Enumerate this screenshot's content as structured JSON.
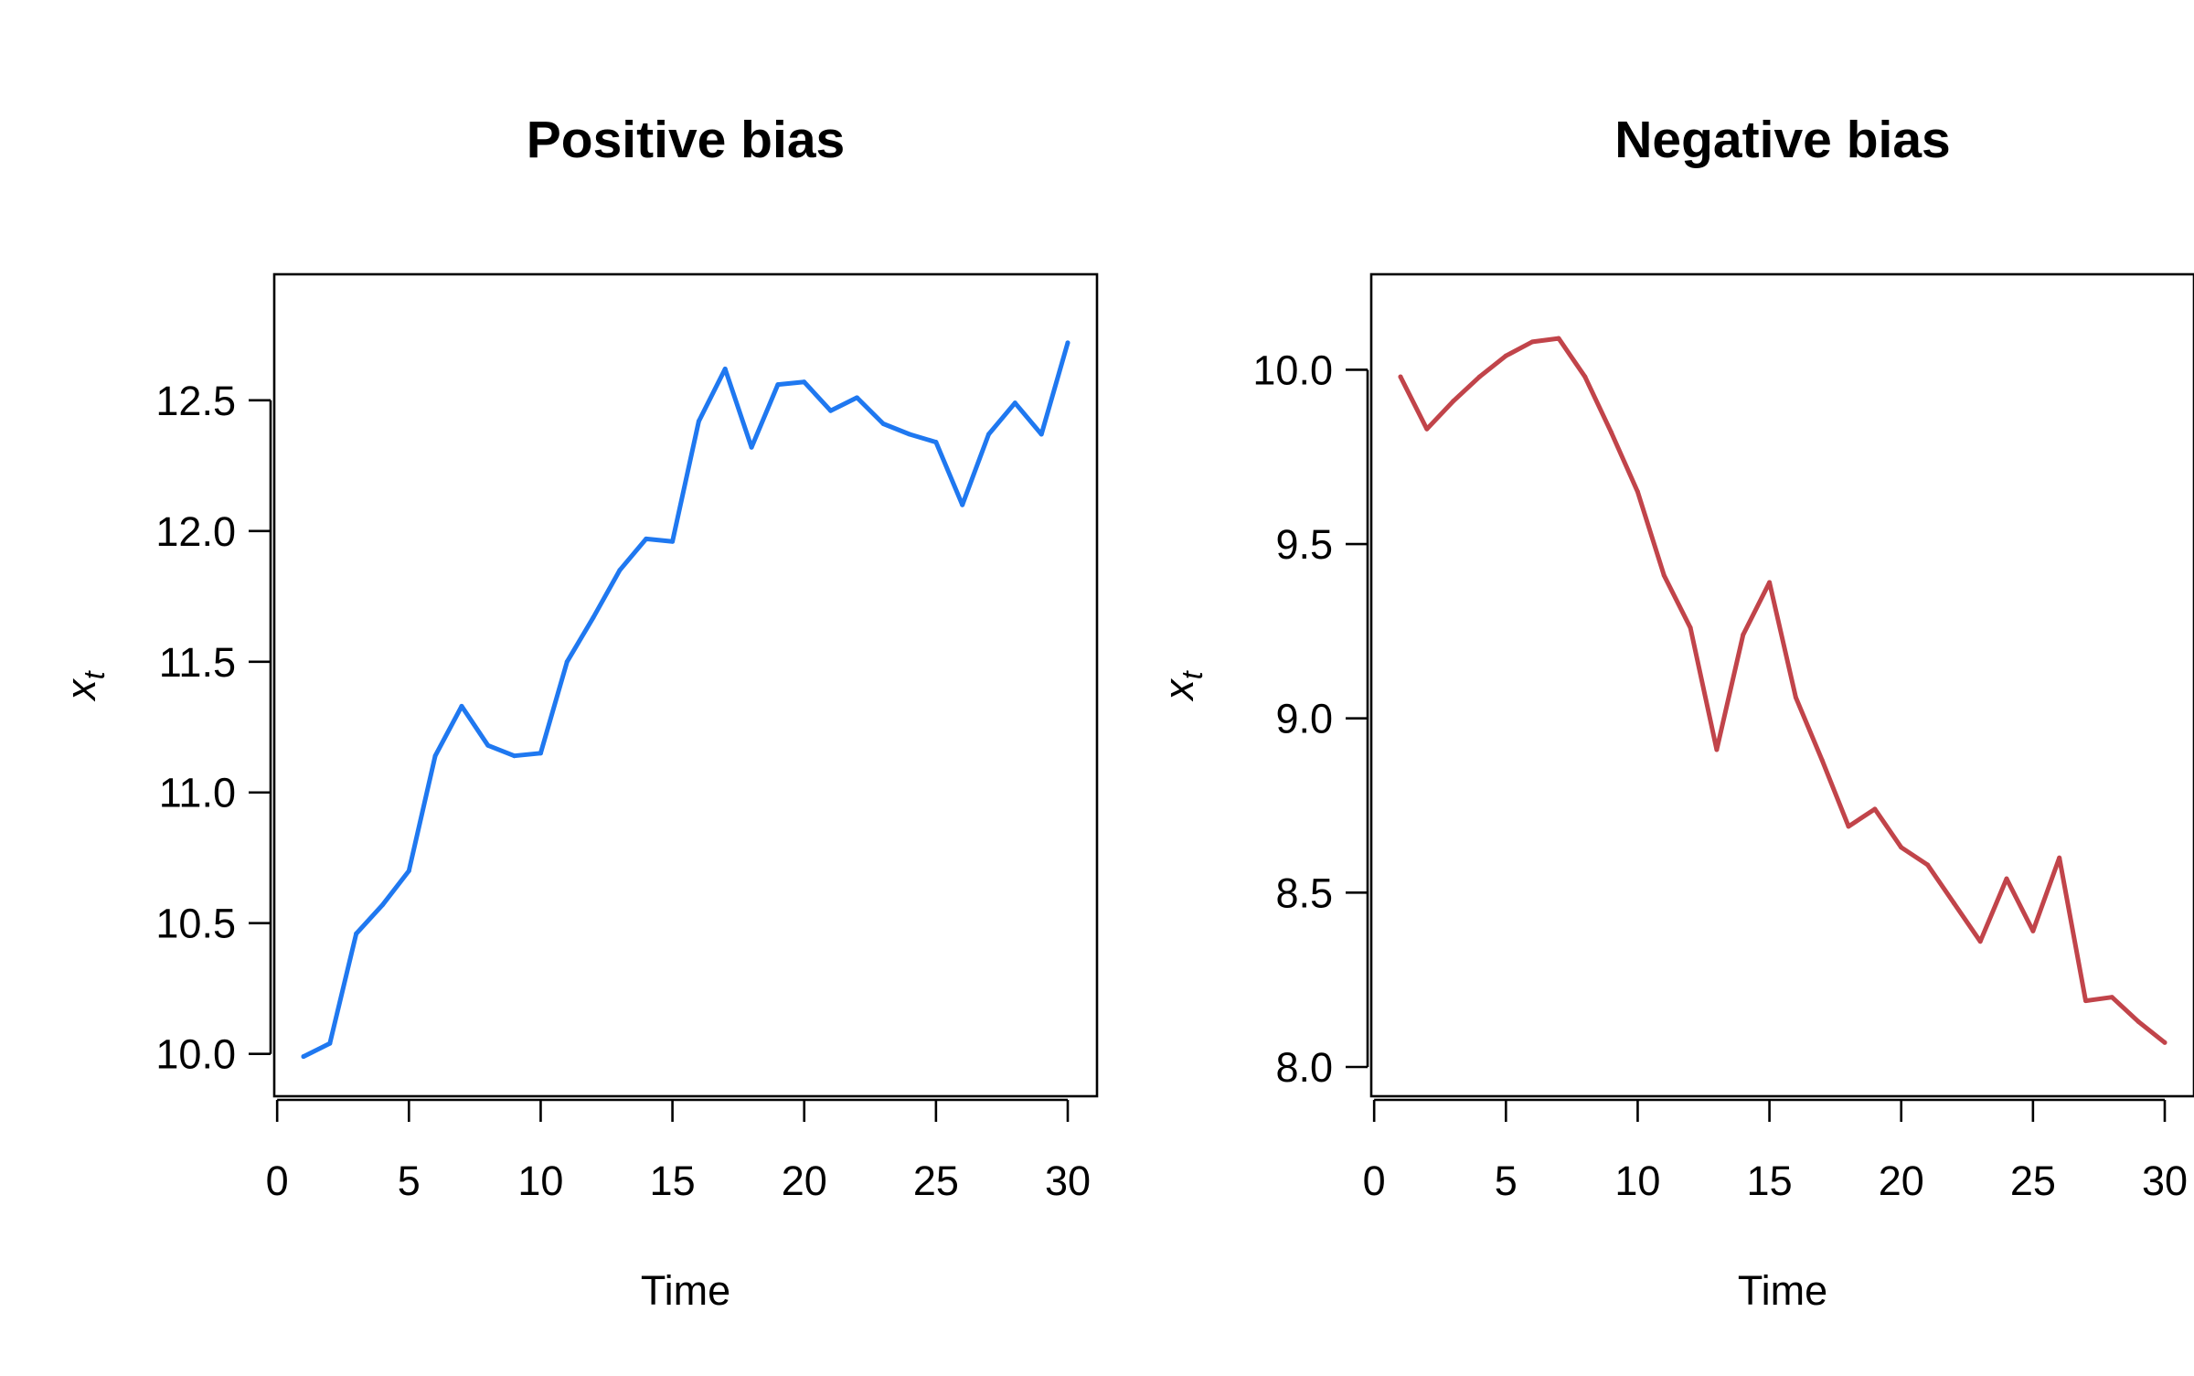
{
  "chart_data": [
    {
      "type": "line",
      "title": "Positive bias",
      "xlabel": "Time",
      "ylabel": "x",
      "ylabel_subscript": "t",
      "xlim": [
        1,
        30
      ],
      "ylim": [
        9.95,
        12.87
      ],
      "xticks": [
        0,
        5,
        10,
        15,
        20,
        25,
        30
      ],
      "xtick_labels": [
        "0",
        "5",
        "10",
        "15",
        "20",
        "25",
        "30"
      ],
      "yticks": [
        10.0,
        10.5,
        11.0,
        11.5,
        12.0,
        12.5
      ],
      "ytick_labels": [
        "10.0",
        "10.5",
        "11.0",
        "11.5",
        "12.0",
        "12.5"
      ],
      "grid": false,
      "color": "#1f78f0",
      "x": [
        1,
        2,
        3,
        4,
        5,
        6,
        7,
        8,
        9,
        10,
        11,
        12,
        13,
        14,
        15,
        16,
        17,
        18,
        19,
        20,
        21,
        22,
        23,
        24,
        25,
        26,
        27,
        28,
        29,
        30
      ],
      "values": [
        9.99,
        10.04,
        10.46,
        10.57,
        10.7,
        11.14,
        11.33,
        11.18,
        11.14,
        11.15,
        11.5,
        11.67,
        11.85,
        11.97,
        11.96,
        12.42,
        12.62,
        12.32,
        12.56,
        12.57,
        12.46,
        12.51,
        12.41,
        12.37,
        12.34,
        12.1,
        12.37,
        12.49,
        12.37,
        12.72
      ]
    },
    {
      "type": "line",
      "title": "Negative bias",
      "xlabel": "Time",
      "ylabel": "x",
      "ylabel_subscript": "t",
      "xlim": [
        1,
        30
      ],
      "ylim": [
        8.0,
        10.19
      ],
      "xticks": [
        0,
        5,
        10,
        15,
        20,
        25,
        30
      ],
      "xtick_labels": [
        "0",
        "5",
        "10",
        "15",
        "20",
        "25",
        "30"
      ],
      "yticks": [
        8.0,
        8.5,
        9.0,
        9.5,
        10.0
      ],
      "ytick_labels": [
        "8.0",
        "8.5",
        "9.0",
        "9.5",
        "10.0"
      ],
      "grid": false,
      "color": "#c1444a",
      "x": [
        1,
        2,
        3,
        4,
        5,
        6,
        7,
        8,
        9,
        10,
        11,
        12,
        13,
        14,
        15,
        16,
        17,
        18,
        19,
        20,
        21,
        22,
        23,
        24,
        25,
        26,
        27,
        28,
        29,
        30
      ],
      "values": [
        9.98,
        9.83,
        9.91,
        9.98,
        10.04,
        10.08,
        10.09,
        9.98,
        9.82,
        9.65,
        9.41,
        9.26,
        8.91,
        9.24,
        9.39,
        9.06,
        8.88,
        8.69,
        8.74,
        8.63,
        8.58,
        8.47,
        8.36,
        8.54,
        8.39,
        8.6,
        8.19,
        8.2,
        8.13,
        8.07
      ]
    }
  ]
}
